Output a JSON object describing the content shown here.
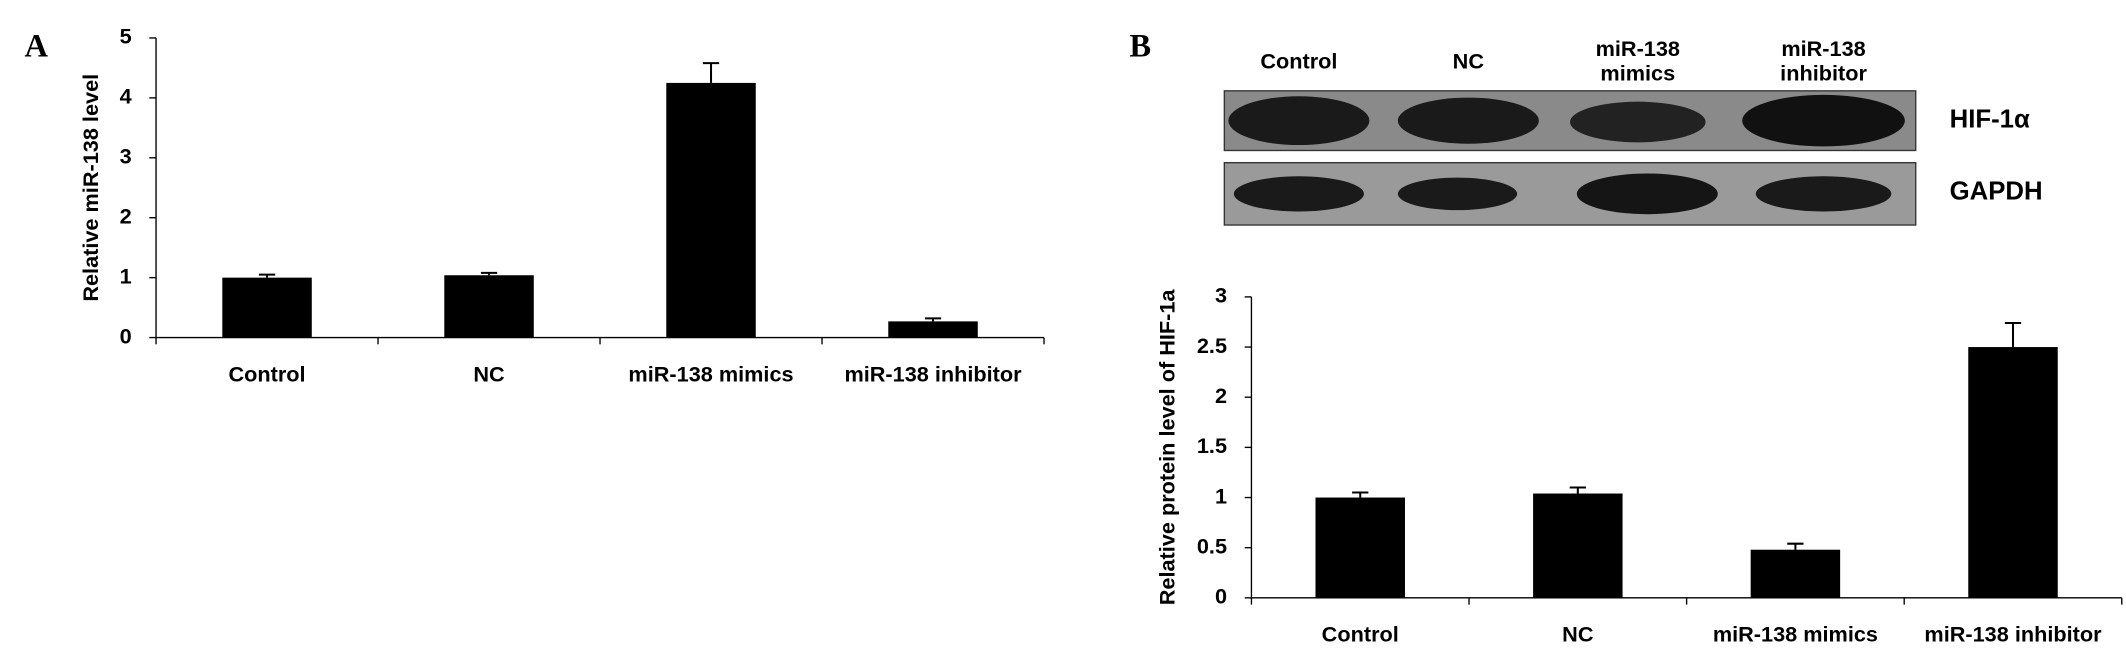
{
  "chart_data": [
    {
      "type": "bar",
      "panel": "A",
      "ylabel": "Relative miR-138 level",
      "categories": [
        "Control",
        "NC",
        "miR-138 mimics",
        "miR-138 inhibitor"
      ],
      "values": [
        1.0,
        1.04,
        4.25,
        0.27
      ],
      "errors": [
        0.05,
        0.04,
        0.33,
        0.05
      ],
      "color": "#000000",
      "ylim": [
        0,
        5
      ],
      "yticks": [
        0,
        1,
        2,
        3,
        4,
        5
      ]
    },
    {
      "type": "bar",
      "panel": "B",
      "ylabel": "Relative protein level of HIF-1a",
      "blot": {
        "lanes": [
          "Control",
          "NC",
          "miR-138 mimics",
          "miR-138 inhibitor"
        ],
        "bands": [
          "HIF-1α",
          "GAPDH"
        ]
      },
      "categories": [
        "Control",
        "NC",
        "miR-138 mimics",
        "miR-138 inhibitor"
      ],
      "values": [
        1.0,
        1.04,
        0.48,
        2.5
      ],
      "errors": [
        0.05,
        0.06,
        0.06,
        0.24
      ],
      "color": "#000000",
      "ylim": [
        0,
        3
      ],
      "yticks": [
        0,
        0.5,
        1,
        1.5,
        2,
        2.5,
        3
      ]
    }
  ]
}
